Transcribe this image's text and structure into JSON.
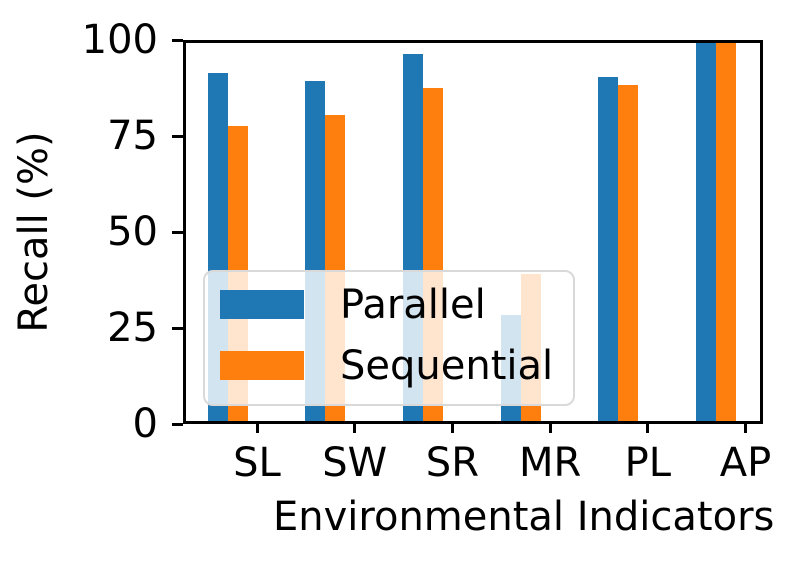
{
  "chart_data": {
    "type": "bar",
    "categories": [
      "SL",
      "SW",
      "SR",
      "MR",
      "PL",
      "AP"
    ],
    "series": [
      {
        "name": "Parallel",
        "color": "#1f77b4",
        "values": [
          92,
          90,
          97,
          28,
          91,
          100
        ]
      },
      {
        "name": "Sequential",
        "color": "#ff7f0e",
        "values": [
          78,
          81,
          88,
          39,
          89,
          100
        ]
      }
    ],
    "title": "",
    "xlabel": "Environmental Indicators",
    "ylabel": "Recall (%)",
    "ylim": [
      0,
      100
    ],
    "yticks": [
      "0",
      "25",
      "50",
      "75",
      "100"
    ],
    "grid": false,
    "legend_position": "inside-lower-left",
    "legend_background_alpha": 0.8,
    "spine_color": "#000000",
    "background_color": "#ffffff"
  }
}
